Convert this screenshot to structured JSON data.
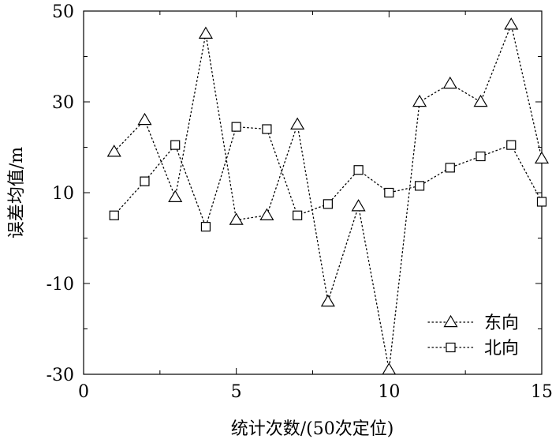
{
  "chart_data": {
    "type": "line",
    "xlabel": "统计次数/(50次定位)",
    "ylabel": "误差均值/m",
    "xlim": [
      0,
      15
    ],
    "ylim": [
      -30,
      50
    ],
    "x_ticks": [
      0,
      5,
      10,
      15
    ],
    "y_ticks": [
      -30,
      -10,
      10,
      30,
      50
    ],
    "grid": false,
    "legend_position": "bottom-right",
    "series": [
      {
        "name": "东向",
        "marker": "triangle",
        "line_style": "dotted",
        "color": "#000000",
        "x": [
          1,
          2,
          3,
          4,
          5,
          6,
          7,
          8,
          9,
          10,
          11,
          12,
          13,
          14,
          15
        ],
        "y": [
          19,
          26,
          9,
          45,
          4,
          5,
          25,
          -14,
          7,
          -29,
          30,
          34,
          30,
          47,
          17.5
        ]
      },
      {
        "name": "北向",
        "marker": "square",
        "line_style": "dotted",
        "color": "#000000",
        "x": [
          1,
          2,
          3,
          4,
          5,
          6,
          7,
          8,
          9,
          10,
          11,
          12,
          13,
          14,
          15
        ],
        "y": [
          5,
          12.5,
          20.5,
          2.5,
          24.5,
          24,
          5,
          7.5,
          15,
          10,
          11.5,
          15.5,
          18,
          20.5,
          8
        ]
      }
    ]
  }
}
